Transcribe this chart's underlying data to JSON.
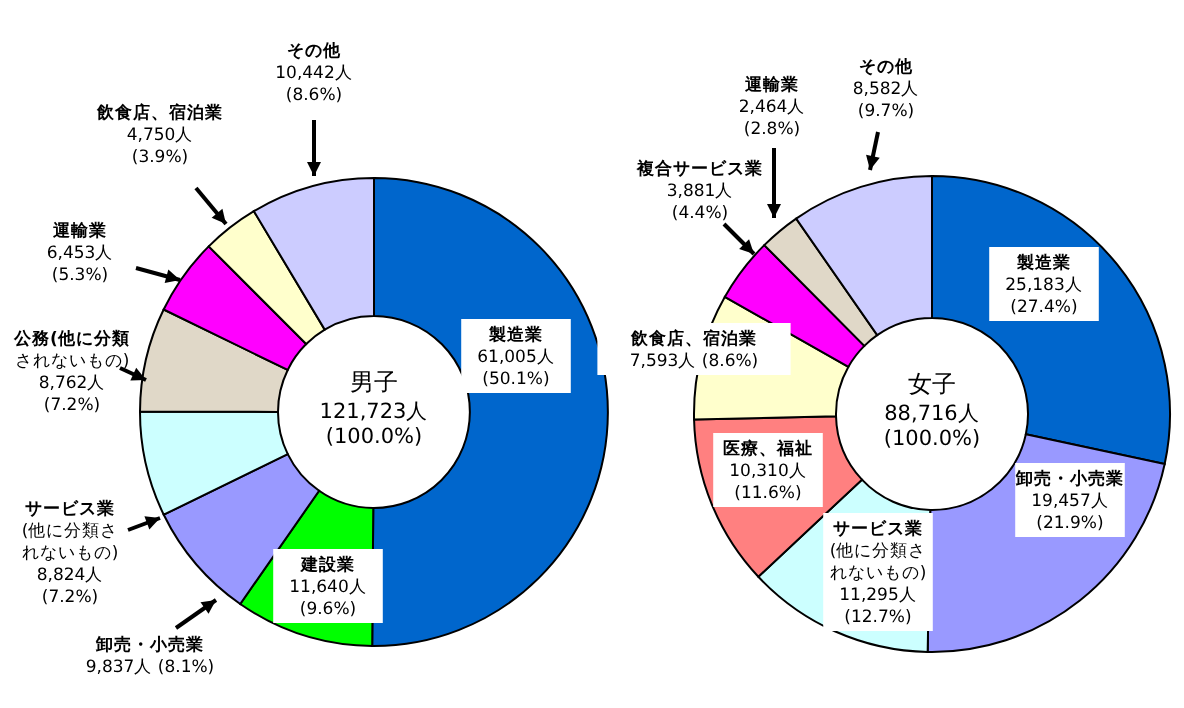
{
  "chart_data": [
    {
      "type": "donut",
      "title": "男子",
      "subtitle": "121,723人 (100.0%)",
      "categories": [
        "製造業",
        "建設業",
        "卸売・小売業",
        "サービス業(他に分類されないもの)",
        "公務(他に分類されないもの)",
        "運輸業",
        "飲食店、宿泊業",
        "その他"
      ],
      "values": [
        61005,
        11640,
        9837,
        8824,
        8762,
        6453,
        4750,
        10442
      ],
      "value_labels": [
        "61,005人 (50.1%)",
        "11,640人 (9.6%)",
        "9,837人 (8.1%)",
        "8,824人 (7.2%)",
        "8,762人 (7.2%)",
        "6,453人 (5.3%)",
        "4,750人 (3.9%)",
        "10,442人 (8.6%)"
      ],
      "colors": [
        "#0066cc",
        "#00ff00",
        "#9999ff",
        "#ccffff",
        "#e0d8c8",
        "#ff00ff",
        "#ffffcc",
        "#ccccff"
      ]
    },
    {
      "type": "donut",
      "title": "女子",
      "subtitle": "88,716人 (100.0%)",
      "categories": [
        "製造業",
        "卸売・小売業",
        "サービス業(他に分類されないもの)",
        "医療、福祉",
        "飲食店、宿泊業",
        "複合サービス業",
        "運輸業",
        "その他"
      ],
      "values": [
        25183,
        19457,
        11295,
        10310,
        7593,
        3881,
        2464,
        8582
      ],
      "value_labels": [
        "25,183人 (27.4%)",
        "19,457人 (21.9%)",
        "11,295人 (12.7%)",
        "10,310人 (11.6%)",
        "7,593人 (8.6%)",
        "3,881人 (4.4%)",
        "2,464人 (2.8%)",
        "8,582人 (9.7%)"
      ],
      "colors": [
        "#0066cc",
        "#9999ff",
        "#ccffff",
        "#ff8080",
        "#ffffcc",
        "#ff00ff",
        "#e0d8c8",
        "#ccccff"
      ]
    }
  ]
}
